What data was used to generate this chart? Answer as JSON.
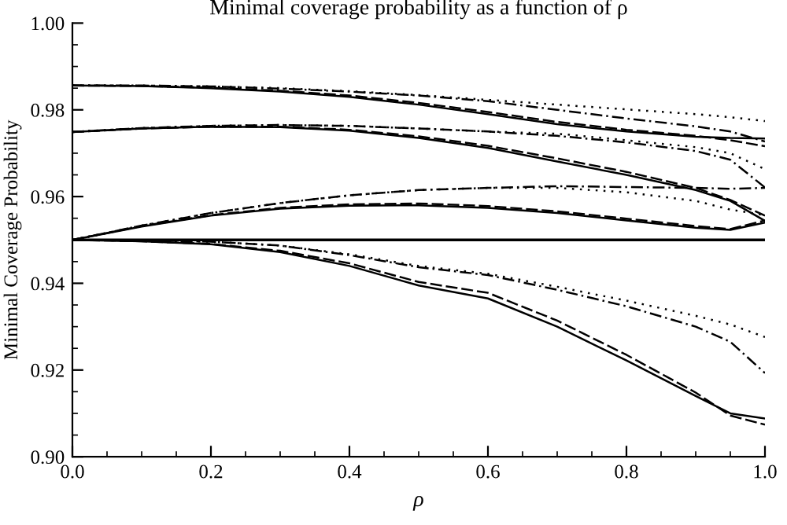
{
  "chart_data": {
    "type": "line",
    "title": "Minimal coverage probability as a function of ρ",
    "xlabel": "ρ",
    "ylabel": "Minimal Coverage Probability",
    "xlim": [
      0,
      1
    ],
    "ylim": [
      0.9,
      1.0
    ],
    "xticks": [
      {
        "value": 0,
        "label": "0.0"
      },
      0.2,
      0.4,
      0.6,
      0.8,
      {
        "value": 1,
        "label": "1.0"
      }
    ],
    "yticks": [
      {
        "value": 0.9,
        "label": "0.90"
      },
      0.92,
      0.94,
      0.96,
      0.98,
      {
        "value": 1.0,
        "label": "1.00"
      }
    ],
    "grid": false,
    "legend": false,
    "marker": "none",
    "ref_lines": [
      {
        "axis": "y",
        "value": 0.95,
        "color": "#000000",
        "line_style": "solid"
      }
    ],
    "x": [
      0,
      0.1,
      0.2,
      0.3,
      0.4,
      0.5,
      0.6,
      0.7,
      0.8,
      0.9,
      0.95,
      1.0
    ],
    "series": [
      {
        "color": "#000000",
        "line_style": "solid",
        "values": [
          0.9856,
          0.9855,
          0.985,
          0.9842,
          0.983,
          0.9812,
          0.979,
          0.9767,
          0.975,
          0.9738,
          0.9735,
          0.9734
        ]
      },
      {
        "color": "#000000",
        "line_style": "dashed",
        "values": [
          0.9856,
          0.9855,
          0.9851,
          0.9844,
          0.9833,
          0.9816,
          0.9795,
          0.9772,
          0.9754,
          0.974,
          0.973,
          0.9716
        ]
      },
      {
        "color": "#000000",
        "line_style": "dashdot",
        "values": [
          0.9856,
          0.9856,
          0.9854,
          0.9849,
          0.9842,
          0.9833,
          0.982,
          0.98,
          0.978,
          0.9762,
          0.975,
          0.9727
        ]
      },
      {
        "color": "#000000",
        "line_style": "dotted",
        "values": [
          0.9856,
          0.9856,
          0.9854,
          0.985,
          0.9843,
          0.9834,
          0.9823,
          0.9812,
          0.9801,
          0.979,
          0.9783,
          0.9774
        ]
      },
      {
        "color": "#000000",
        "line_style": "solid",
        "values": [
          0.9749,
          0.9757,
          0.9761,
          0.976,
          0.9752,
          0.9735,
          0.9712,
          0.9681,
          0.965,
          0.9615,
          0.959,
          0.9544
        ]
      },
      {
        "color": "#000000",
        "line_style": "dashed",
        "values": [
          0.9749,
          0.9757,
          0.9761,
          0.9761,
          0.9754,
          0.9739,
          0.9717,
          0.9688,
          0.9657,
          0.962,
          0.9592,
          0.9556
        ]
      },
      {
        "color": "#000000",
        "line_style": "dashdot",
        "values": [
          0.9749,
          0.9758,
          0.9763,
          0.9765,
          0.9763,
          0.9757,
          0.975,
          0.974,
          0.9725,
          0.9705,
          0.9685,
          0.9621
        ]
      },
      {
        "color": "#000000",
        "line_style": "dotted",
        "values": [
          0.9749,
          0.9758,
          0.9763,
          0.9765,
          0.9763,
          0.9757,
          0.975,
          0.9745,
          0.973,
          0.9714,
          0.97,
          0.9663
        ]
      },
      {
        "color": "#000000",
        "line_style": "solid",
        "values": [
          0.95,
          0.9531,
          0.9556,
          0.9572,
          0.9579,
          0.958,
          0.9574,
          0.9562,
          0.9545,
          0.9528,
          0.9523,
          0.954
        ]
      },
      {
        "color": "#000000",
        "line_style": "dashed",
        "values": [
          0.95,
          0.9532,
          0.9557,
          0.9574,
          0.9582,
          0.9584,
          0.9578,
          0.9566,
          0.9549,
          0.9532,
          0.9525,
          0.9545
        ]
      },
      {
        "color": "#000000",
        "line_style": "dashdot",
        "values": [
          0.95,
          0.9533,
          0.9562,
          0.9585,
          0.9603,
          0.9615,
          0.962,
          0.9624,
          0.9622,
          0.962,
          0.9618,
          0.962
        ]
      },
      {
        "color": "#000000",
        "line_style": "dotted",
        "values": [
          0.95,
          0.9533,
          0.9562,
          0.9585,
          0.9603,
          0.9615,
          0.962,
          0.962,
          0.961,
          0.959,
          0.957,
          0.9557
        ]
      },
      {
        "color": "#000000",
        "line_style": "solid",
        "values": [
          0.95,
          0.9497,
          0.949,
          0.9472,
          0.944,
          0.9395,
          0.9365,
          0.93,
          0.9222,
          0.914,
          0.91,
          0.9088
        ]
      },
      {
        "color": "#000000",
        "line_style": "dashed",
        "values": [
          0.95,
          0.9497,
          0.9491,
          0.9475,
          0.9446,
          0.9403,
          0.9378,
          0.9314,
          0.9235,
          0.9148,
          0.9095,
          0.9074
        ]
      },
      {
        "color": "#000000",
        "line_style": "dashdot",
        "values": [
          0.95,
          0.9498,
          0.9496,
          0.9487,
          0.9465,
          0.9437,
          0.9419,
          0.9385,
          0.9347,
          0.93,
          0.9265,
          0.9193
        ]
      },
      {
        "color": "#000000",
        "line_style": "dotted",
        "values": [
          0.95,
          0.9498,
          0.9496,
          0.9487,
          0.9467,
          0.944,
          0.9422,
          0.9392,
          0.936,
          0.9325,
          0.9305,
          0.9276
        ]
      }
    ]
  }
}
